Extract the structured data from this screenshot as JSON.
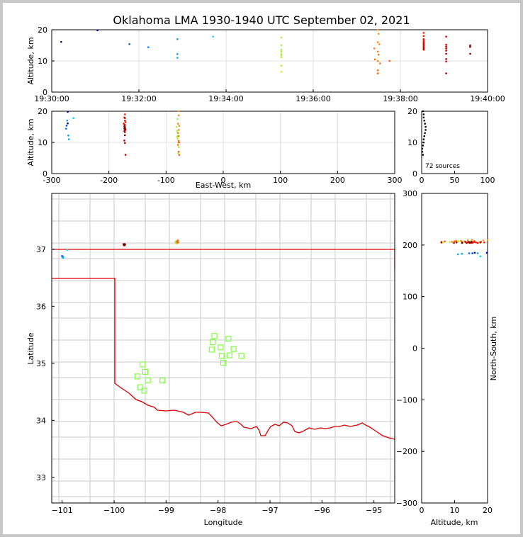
{
  "title": "Oklahoma LMA 1930-1940 UTC September 02, 2021",
  "colors": {
    "grid": "#e0e0e0",
    "county": "#c8c8c8",
    "state_border": "#dd0000",
    "station": "#80ff40"
  },
  "chart_data": [
    {
      "id": "time_height",
      "type": "scatter",
      "ylabel": "Altitude, km",
      "xlim": [
        "19:30:00",
        "19:40:00"
      ],
      "xticks": [
        "19:30:00",
        "19:32:00",
        "19:34:00",
        "19:36:00",
        "19:38:00",
        "19:40:00"
      ],
      "ylim": [
        0,
        20
      ],
      "yticks": [
        "0",
        "10",
        "20"
      ],
      "grid": true
    },
    {
      "id": "ew_height",
      "type": "scatter",
      "xlabel": "East-West, km",
      "ylabel": "Altitude, km",
      "xlim": [
        -300,
        300
      ],
      "xticks": [
        "-300",
        "-200",
        "-100",
        "0",
        "100",
        "200",
        "300"
      ],
      "ylim": [
        0,
        20
      ],
      "yticks": [
        "0",
        "10",
        "20"
      ],
      "grid": true
    },
    {
      "id": "histogram",
      "type": "scatter",
      "xlim": [
        0,
        100
      ],
      "xticks": [
        "0",
        "50",
        "100"
      ],
      "ylim": [
        0,
        20
      ],
      "yticks": [
        "0",
        "10",
        "20"
      ],
      "annotation": "72 sources"
    },
    {
      "id": "plan_view",
      "type": "scatter",
      "xlabel": "Longitude",
      "ylabel": "Latitude",
      "xlim": [
        -101.2,
        -94.6
      ],
      "xticks": [
        "−101",
        "−100",
        "−99",
        "−98",
        "−97",
        "−96",
        "−95"
      ],
      "ylim": [
        32.55,
        37.98
      ],
      "yticks": [
        "33",
        "34",
        "35",
        "36",
        "37"
      ],
      "stations": [
        [
          -98.07,
          35.48
        ],
        [
          -98.1,
          35.37
        ],
        [
          -97.8,
          35.43
        ],
        [
          -97.95,
          35.28
        ],
        [
          -98.12,
          35.24
        ],
        [
          -97.7,
          35.25
        ],
        [
          -97.93,
          35.13
        ],
        [
          -97.78,
          35.14
        ],
        [
          -97.55,
          35.13
        ],
        [
          -97.9,
          35.01
        ],
        [
          -99.45,
          34.98
        ],
        [
          -99.4,
          34.85
        ],
        [
          -99.55,
          34.77
        ],
        [
          -99.35,
          34.7
        ],
        [
          -99.07,
          34.7
        ],
        [
          -99.5,
          34.58
        ],
        [
          -99.42,
          34.52
        ]
      ]
    },
    {
      "id": "ns_height",
      "type": "scatter",
      "xlabel": "Altitude, km",
      "ylabel": "North-South, km",
      "xlim": [
        0,
        20
      ],
      "xticks": [
        "0",
        "10",
        "20"
      ],
      "ylim": [
        -300,
        300
      ],
      "yticks": [
        "−300",
        "−200",
        "−100",
        "0",
        "100",
        "200",
        "300"
      ]
    }
  ],
  "sources": [
    {
      "t": "19:30:13",
      "lon": -101.0,
      "lat": 36.88,
      "ew": -272,
      "ns": 185,
      "alt": 16.1,
      "color": "#000070"
    },
    {
      "t": "19:31:03",
      "lon": -101.0,
      "lat": 36.88,
      "ew": -272,
      "ns": 185,
      "alt": 19.8,
      "color": "#0000d0"
    },
    {
      "t": "19:31:47",
      "lon": -101.0,
      "lat": 36.88,
      "ew": -274,
      "ns": 184,
      "alt": 15.4,
      "color": "#0040ff"
    },
    {
      "t": "19:32:13",
      "lon": -100.98,
      "lat": 36.87,
      "ew": -275,
      "ns": 184,
      "alt": 14.4,
      "color": "#0070ff"
    },
    {
      "t": "19:32:53",
      "lon": -100.99,
      "lat": 36.87,
      "ew": -273,
      "ns": 184,
      "alt": 17.0,
      "color": "#00a0ff"
    },
    {
      "t": "19:32:53",
      "lon": -100.99,
      "lat": 36.86,
      "ew": -271,
      "ns": 183,
      "alt": 12.2,
      "color": "#00a0ff"
    },
    {
      "t": "19:32:53",
      "lon": -100.98,
      "lat": 36.85,
      "ew": -270,
      "ns": 182,
      "alt": 11.0,
      "color": "#00b0ff"
    },
    {
      "t": "19:33:42",
      "lon": -100.9,
      "lat": 36.99,
      "ew": -262,
      "ns": 178,
      "alt": 17.8,
      "color": "#00d8e8"
    },
    {
      "t": "19:35:16",
      "lon": -98.8,
      "lat": 37.12,
      "ew": -80,
      "ns": 206,
      "alt": 17.5,
      "color": "#a0f040"
    },
    {
      "t": "19:35:16",
      "lon": -98.82,
      "lat": 37.13,
      "ew": -82,
      "ns": 207,
      "alt": 15.0,
      "color": "#a0f040"
    },
    {
      "t": "19:35:16",
      "lon": -98.81,
      "lat": 37.11,
      "ew": -81,
      "ns": 205,
      "alt": 13.6,
      "color": "#a8f038"
    },
    {
      "t": "19:35:16",
      "lon": -98.8,
      "lat": 37.12,
      "ew": -80,
      "ns": 206,
      "alt": 13.0,
      "color": "#a8f038"
    },
    {
      "t": "19:35:16",
      "lon": -98.79,
      "lat": 37.1,
      "ew": -79,
      "ns": 204,
      "alt": 12.2,
      "color": "#b0f030"
    },
    {
      "t": "19:35:16",
      "lon": -98.81,
      "lat": 37.14,
      "ew": -81,
      "ns": 208,
      "alt": 11.8,
      "color": "#b0f030"
    },
    {
      "t": "19:35:16",
      "lon": -98.8,
      "lat": 37.13,
      "ew": -80,
      "ns": 207,
      "alt": 11.2,
      "color": "#b8f028"
    },
    {
      "t": "19:35:16",
      "lon": -98.78,
      "lat": 37.12,
      "ew": -78,
      "ns": 206,
      "alt": 8.5,
      "color": "#c0f020"
    },
    {
      "t": "19:35:16",
      "lon": -98.79,
      "lat": 37.11,
      "ew": -79,
      "ns": 205,
      "alt": 6.5,
      "color": "#c8f018"
    },
    {
      "t": "19:37:29",
      "lon": -98.78,
      "lat": 37.15,
      "ew": -78,
      "ns": 210,
      "alt": 20.0,
      "color": "#ff9020"
    },
    {
      "t": "19:37:30",
      "lon": -98.78,
      "lat": 37.15,
      "ew": -78,
      "ns": 209,
      "alt": 18.7,
      "color": "#ff9020"
    },
    {
      "t": "19:37:29",
      "lon": -98.79,
      "lat": 37.14,
      "ew": -79,
      "ns": 208,
      "alt": 16.0,
      "color": "#ff8818"
    },
    {
      "t": "19:37:31",
      "lon": -98.77,
      "lat": 37.16,
      "ew": -77,
      "ns": 210,
      "alt": 15.3,
      "color": "#ff8818"
    },
    {
      "t": "19:37:24",
      "lon": -98.78,
      "lat": 37.15,
      "ew": -78,
      "ns": 209,
      "alt": 14.0,
      "color": "#ff8010"
    },
    {
      "t": "19:37:29",
      "lon": -98.79,
      "lat": 37.13,
      "ew": -79,
      "ns": 207,
      "alt": 13.0,
      "color": "#ff8010"
    },
    {
      "t": "19:37:30",
      "lon": -98.78,
      "lat": 37.14,
      "ew": -78,
      "ns": 208,
      "alt": 12.0,
      "color": "#ff7810"
    },
    {
      "t": "19:37:29",
      "lon": -98.77,
      "lat": 37.13,
      "ew": -77,
      "ns": 207,
      "alt": 10.0,
      "color": "#ff7808"
    },
    {
      "t": "19:37:25",
      "lon": -98.78,
      "lat": 37.14,
      "ew": -78,
      "ns": 208,
      "alt": 10.5,
      "color": "#ff7008"
    },
    {
      "t": "19:37:32",
      "lon": -98.79,
      "lat": 37.12,
      "ew": -79,
      "ns": 206,
      "alt": 9.2,
      "color": "#ff7008"
    },
    {
      "t": "19:37:29",
      "lon": -98.78,
      "lat": 37.13,
      "ew": -78,
      "ns": 207,
      "alt": 7.0,
      "color": "#ff6800"
    },
    {
      "t": "19:37:29",
      "lon": -98.77,
      "lat": 37.12,
      "ew": -77,
      "ns": 206,
      "alt": 6.0,
      "color": "#ff6000"
    },
    {
      "t": "19:37:45",
      "lon": -98.78,
      "lat": 37.13,
      "ew": -78,
      "ns": 207,
      "alt": 10.0,
      "color": "#ff6000"
    },
    {
      "t": "19:38:32",
      "lon": -99.8,
      "lat": 37.08,
      "ew": -172,
      "ns": 205,
      "alt": 19.0,
      "color": "#ff2000"
    },
    {
      "t": "19:38:32",
      "lon": -99.81,
      "lat": 37.09,
      "ew": -173,
      "ns": 206,
      "alt": 18.0,
      "color": "#ff1800"
    },
    {
      "t": "19:38:32",
      "lon": -99.8,
      "lat": 37.07,
      "ew": -172,
      "ns": 204,
      "alt": 17.0,
      "color": "#f01000"
    },
    {
      "t": "19:38:32",
      "lon": -99.79,
      "lat": 37.08,
      "ew": -171,
      "ns": 205,
      "alt": 16.5,
      "color": "#f01000"
    },
    {
      "t": "19:38:32",
      "lon": -99.82,
      "lat": 37.09,
      "ew": -174,
      "ns": 206,
      "alt": 16.0,
      "color": "#e80800"
    },
    {
      "t": "19:38:32",
      "lon": -99.8,
      "lat": 37.08,
      "ew": -172,
      "ns": 205,
      "alt": 15.6,
      "color": "#e80800"
    },
    {
      "t": "19:38:32",
      "lon": -99.81,
      "lat": 37.07,
      "ew": -173,
      "ns": 204,
      "alt": 15.2,
      "color": "#e00000"
    },
    {
      "t": "19:38:32",
      "lon": -99.8,
      "lat": 37.08,
      "ew": -172,
      "ns": 205,
      "alt": 14.8,
      "color": "#e00000"
    },
    {
      "t": "19:38:32",
      "lon": -99.79,
      "lat": 37.09,
      "ew": -171,
      "ns": 206,
      "alt": 14.3,
      "color": "#d80000"
    },
    {
      "t": "19:38:32",
      "lon": -99.8,
      "lat": 37.08,
      "ew": -172,
      "ns": 205,
      "alt": 14.0,
      "color": "#d80000"
    },
    {
      "t": "19:38:32",
      "lon": -99.81,
      "lat": 37.07,
      "ew": -173,
      "ns": 204,
      "alt": 13.6,
      "color": "#d00000"
    },
    {
      "t": "19:39:03",
      "lon": -99.8,
      "lat": 37.08,
      "ew": -172,
      "ns": 205,
      "alt": 17.8,
      "color": "#c80000"
    },
    {
      "t": "19:39:03",
      "lon": -99.81,
      "lat": 37.09,
      "ew": -173,
      "ns": 206,
      "alt": 15.2,
      "color": "#c00000"
    },
    {
      "t": "19:39:03",
      "lon": -99.8,
      "lat": 37.07,
      "ew": -172,
      "ns": 204,
      "alt": 14.6,
      "color": "#c00000"
    },
    {
      "t": "19:39:03",
      "lon": -99.79,
      "lat": 37.08,
      "ew": -171,
      "ns": 205,
      "alt": 14.0,
      "color": "#b80000"
    },
    {
      "t": "19:39:03",
      "lon": -99.8,
      "lat": 37.09,
      "ew": -172,
      "ns": 206,
      "alt": 13.3,
      "color": "#b80000"
    },
    {
      "t": "19:39:03",
      "lon": -99.81,
      "lat": 37.08,
      "ew": -173,
      "ns": 205,
      "alt": 10.6,
      "color": "#b00000"
    },
    {
      "t": "19:39:03",
      "lon": -99.8,
      "lat": 37.07,
      "ew": -172,
      "ns": 204,
      "alt": 9.8,
      "color": "#b00000"
    },
    {
      "t": "19:39:03",
      "lon": -99.79,
      "lat": 37.08,
      "ew": -171,
      "ns": 205,
      "alt": 6.0,
      "color": "#a80000"
    },
    {
      "t": "19:39:03",
      "lon": -99.8,
      "lat": 37.08,
      "ew": -172,
      "ns": 205,
      "alt": 12.3,
      "color": "#a00000"
    },
    {
      "t": "19:39:36",
      "lon": -99.8,
      "lat": 37.09,
      "ew": -172,
      "ns": 206,
      "alt": 15.0,
      "color": "#700000"
    },
    {
      "t": "19:39:36",
      "lon": -99.81,
      "lat": 37.08,
      "ew": -173,
      "ns": 205,
      "alt": 14.5,
      "color": "#700000"
    },
    {
      "t": "19:39:36",
      "lon": -99.8,
      "lat": 37.07,
      "ew": -172,
      "ns": 204,
      "alt": 12.3,
      "color": "#780000"
    }
  ],
  "histogram_bins": [
    {
      "alt": 20,
      "count": 2
    },
    {
      "alt": 19,
      "count": 3
    },
    {
      "alt": 18,
      "count": 3
    },
    {
      "alt": 17,
      "count": 4
    },
    {
      "alt": 16,
      "count": 5
    },
    {
      "alt": 15,
      "count": 6
    },
    {
      "alt": 14,
      "count": 6
    },
    {
      "alt": 13,
      "count": 5
    },
    {
      "alt": 12,
      "count": 4
    },
    {
      "alt": 11,
      "count": 3
    },
    {
      "alt": 10,
      "count": 3
    },
    {
      "alt": 9,
      "count": 2
    },
    {
      "alt": 8,
      "count": 1
    },
    {
      "alt": 7,
      "count": 1
    },
    {
      "alt": 6,
      "count": 2
    }
  ]
}
